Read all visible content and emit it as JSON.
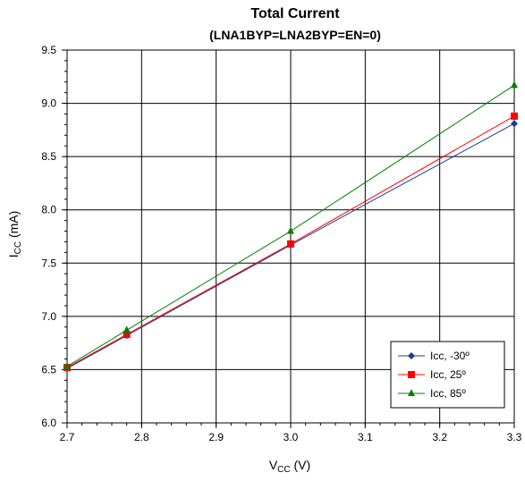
{
  "chart_data": {
    "type": "line",
    "title": "Total Current",
    "subtitle": "(LNA1BYP=LNA2BYP=EN=0)",
    "xlabel": {
      "main": "V",
      "sub": "CC",
      "unit": " (V)"
    },
    "ylabel": {
      "main": "I",
      "sub": "CC",
      "unit": " (mA)"
    },
    "xlim": [
      2.7,
      3.3
    ],
    "ylim": [
      6.0,
      9.5
    ],
    "xticks": [
      "2.7",
      "2.8",
      "2.9",
      "3.0",
      "3.1",
      "3.2",
      "3.3"
    ],
    "yticks": [
      "6.0",
      "6.5",
      "7.0",
      "7.5",
      "8.0",
      "8.5",
      "9.0",
      "9.5"
    ],
    "grid": true,
    "legend_position": "bottom-right",
    "series": [
      {
        "name": "Icc, -30º",
        "color": "#1f3a93",
        "marker": "diamond",
        "x": [
          2.7,
          2.78,
          3.0,
          3.3
        ],
        "y": [
          6.51,
          6.82,
          7.67,
          8.81
        ]
      },
      {
        "name": "Icc, 25º",
        "color": "#ff0000",
        "marker": "square",
        "x": [
          2.7,
          2.78,
          3.0,
          3.3
        ],
        "y": [
          6.52,
          6.83,
          7.68,
          8.88
        ]
      },
      {
        "name": "Icc, 85º",
        "color": "#008000",
        "marker": "triangle",
        "x": [
          2.7,
          2.78,
          3.0,
          3.3
        ],
        "y": [
          6.53,
          6.87,
          7.8,
          9.17
        ]
      }
    ]
  }
}
